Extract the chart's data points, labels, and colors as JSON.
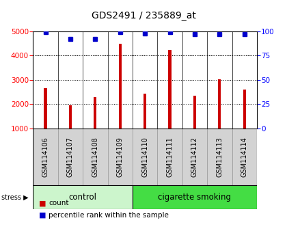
{
  "title": "GDS2491 / 235889_at",
  "samples": [
    "GSM114106",
    "GSM114107",
    "GSM114108",
    "GSM114109",
    "GSM114110",
    "GSM114111",
    "GSM114112",
    "GSM114113",
    "GSM114114"
  ],
  "counts": [
    2650,
    1950,
    2280,
    4480,
    2420,
    4250,
    2340,
    3020,
    2600
  ],
  "percentile_ranks": [
    99,
    92,
    92,
    99,
    98,
    99,
    97,
    97,
    97
  ],
  "groups": [
    {
      "label": "control",
      "start": 0,
      "end": 4,
      "color": "#ccf5cc"
    },
    {
      "label": "cigarette smoking",
      "start": 4,
      "end": 9,
      "color": "#44dd44"
    }
  ],
  "bar_color": "#cc0000",
  "dot_color": "#0000cc",
  "ylim_left": [
    1000,
    5000
  ],
  "ylim_right": [
    0,
    100
  ],
  "yticks_left": [
    1000,
    2000,
    3000,
    4000,
    5000
  ],
  "yticks_right": [
    0,
    25,
    50,
    75,
    100
  ],
  "grid_values": [
    2000,
    3000,
    4000
  ],
  "legend_count_label": "count",
  "legend_pct_label": "percentile rank within the sample",
  "stress_label": "stress",
  "title_fontsize": 10,
  "tick_fontsize": 7.5,
  "label_fontsize": 7,
  "green_fontsize": 8.5
}
